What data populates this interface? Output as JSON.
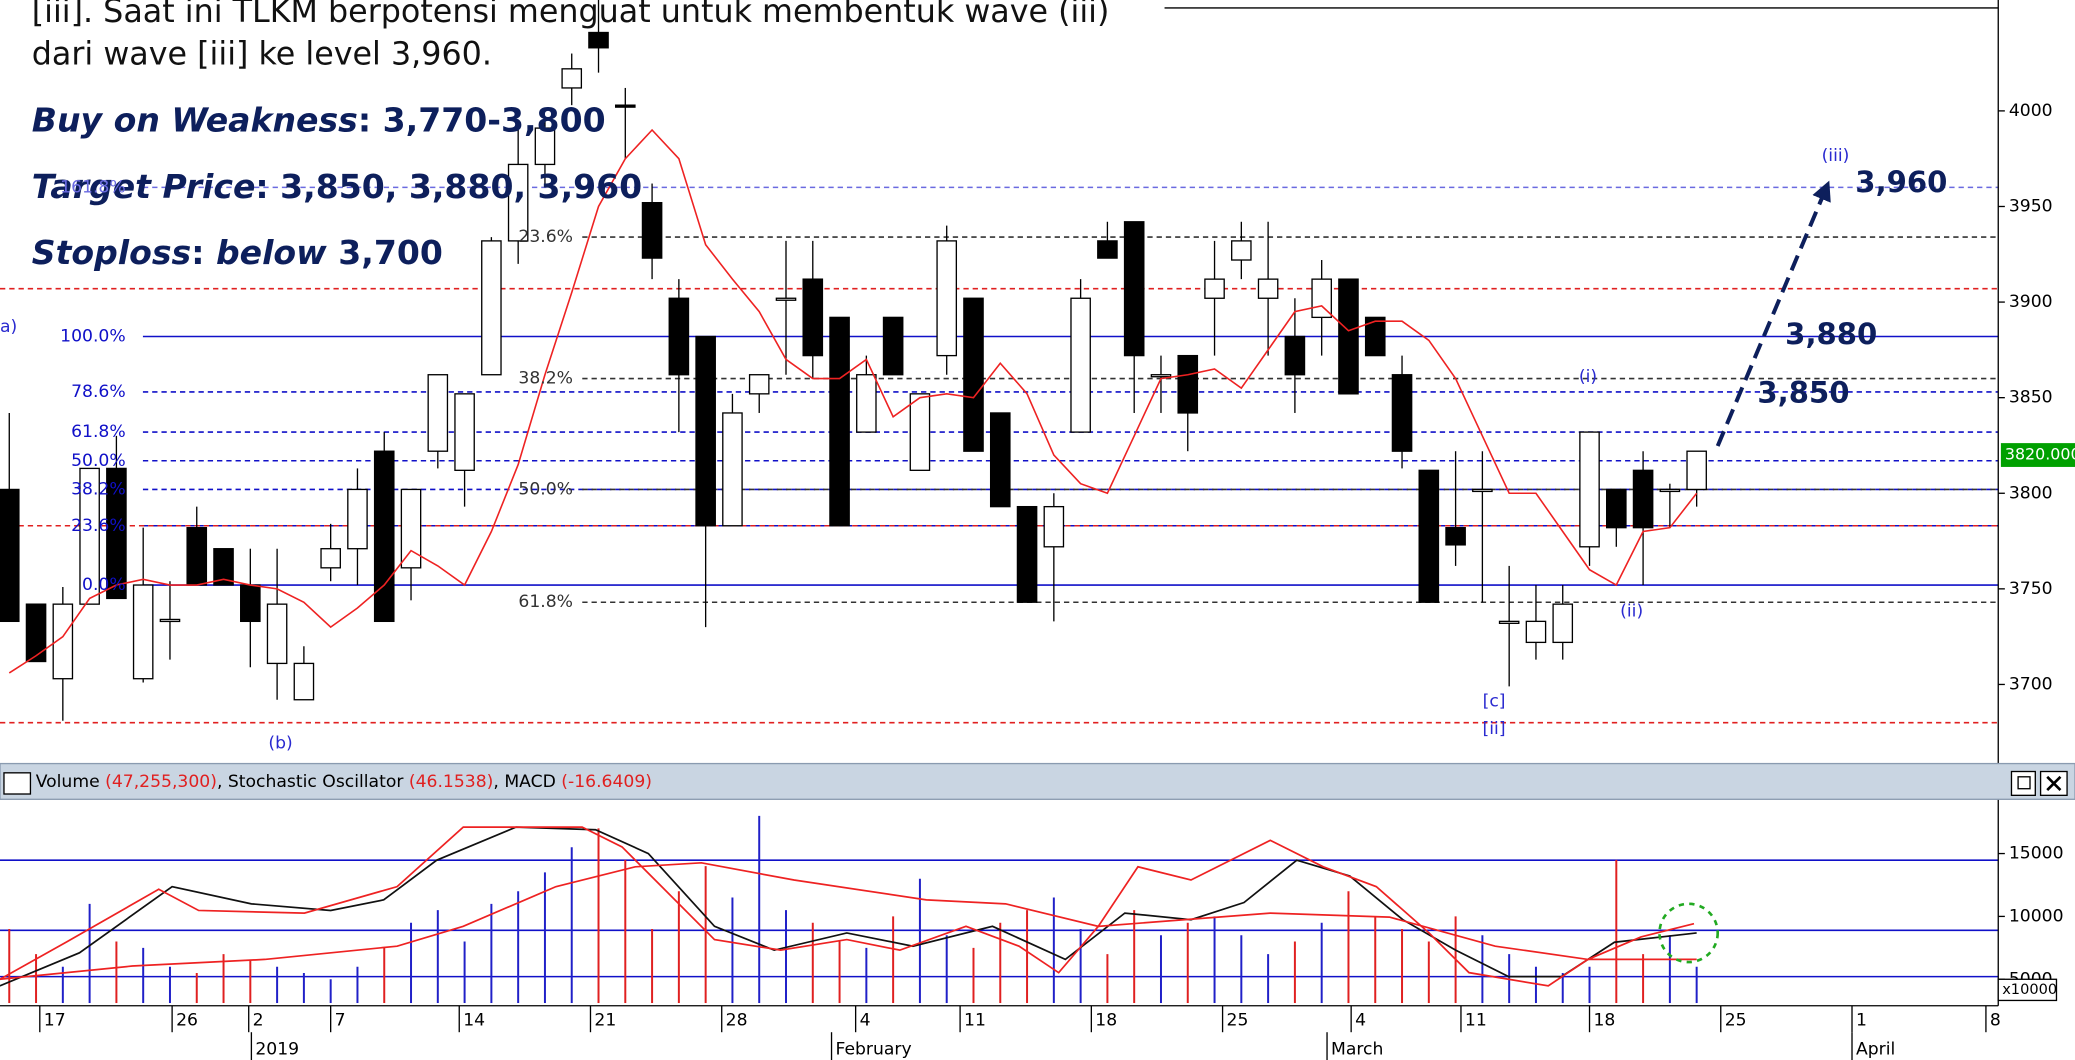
{
  "chart_data": {
    "type": "candlestick",
    "notes": [
      "[iii]. Saat ini TLKM berpotensi menguat untuk membentuk wave (iii)",
      "dari wave [iii] ke level 3,960."
    ],
    "plan": [
      [
        {
          "text": "Buy on Weakness",
          "italic": true
        },
        {
          "text": ": 3,770-3,800",
          "italic": false
        }
      ],
      [
        {
          "text": "Target Price",
          "italic": true
        },
        {
          "text": ": 3,850, 3,880, 3,960",
          "italic": false
        }
      ],
      [
        {
          "text": "Stoploss",
          "italic": true
        },
        {
          "text": ": ",
          "italic": false
        },
        {
          "text": "below",
          "italic": true
        },
        {
          "text": " 3,700",
          "italic": false
        }
      ]
    ],
    "ylim": [
      3660,
      4058
    ],
    "yticks": [
      3700,
      3750,
      3800,
      3850,
      3900,
      3950,
      4000
    ],
    "last_price": {
      "value": 3820,
      "label": "3820.000"
    },
    "xlim": [
      -0.346,
      74.26
    ],
    "xticks": [
      {
        "value": 1.14,
        "label": "17"
      },
      {
        "value": 6.08,
        "label": "26"
      },
      {
        "value": 8.94,
        "label": "2"
      },
      {
        "value": 12.0,
        "label": "7"
      },
      {
        "value": 16.8,
        "label": "14"
      },
      {
        "value": 21.7,
        "label": "21"
      },
      {
        "value": 26.6,
        "label": "28"
      },
      {
        "value": 31.6,
        "label": "4"
      },
      {
        "value": 35.5,
        "label": "11"
      },
      {
        "value": 40.4,
        "label": "18"
      },
      {
        "value": 45.3,
        "label": "25"
      },
      {
        "value": 50.1,
        "label": "4"
      },
      {
        "value": 54.2,
        "label": "11"
      },
      {
        "value": 59.0,
        "label": "18"
      },
      {
        "value": 63.9,
        "label": "25"
      },
      {
        "value": 68.8,
        "label": "1"
      },
      {
        "value": 73.8,
        "label": "8"
      }
    ],
    "months": [
      {
        "value": 9.04,
        "label": "2019"
      },
      {
        "value": 30.7,
        "label": "February"
      },
      {
        "value": 49.2,
        "label": "March"
      },
      {
        "value": 68.8,
        "label": "April"
      }
    ],
    "candles": [
      [
        3802,
        3842,
        3733,
        3733
      ],
      [
        3742,
        3742,
        3712,
        3712
      ],
      [
        3703,
        3751,
        3681,
        3742
      ],
      [
        3742,
        3813,
        3742,
        3813
      ],
      [
        3813,
        3830,
        3745,
        3745
      ],
      [
        3703,
        3782,
        3701,
        3752
      ],
      [
        3733,
        3754,
        3713,
        3734
      ],
      [
        3782,
        3793,
        3752,
        3752
      ],
      [
        3771,
        3771,
        3752,
        3752
      ],
      [
        3752,
        3771,
        3709,
        3733
      ],
      [
        3711,
        3771,
        3692,
        3742
      ],
      [
        3692,
        3720,
        3692,
        3711
      ],
      [
        3761,
        3784,
        3754,
        3771
      ],
      [
        3771,
        3813,
        3752,
        3802
      ],
      [
        3822,
        3832,
        3733,
        3733
      ],
      [
        3761,
        3802,
        3744,
        3802
      ],
      [
        3822,
        3862,
        3813,
        3862
      ],
      [
        3812,
        3852,
        3793,
        3852
      ],
      [
        3862,
        3934,
        3862,
        3932
      ],
      [
        3932,
        3990,
        3920,
        3972
      ],
      [
        3972,
        3995,
        3960,
        3991
      ],
      [
        4012,
        4030,
        4003,
        4022
      ],
      [
        4041,
        4058,
        4020,
        4033
      ],
      [
        4003,
        4012,
        3975,
        4002
      ],
      [
        3952,
        3962,
        3912,
        3923
      ],
      [
        3902,
        3912,
        3832,
        3862
      ],
      [
        3882,
        3882,
        3730,
        3783
      ],
      [
        3783,
        3852,
        3783,
        3842
      ],
      [
        3852,
        3862,
        3842,
        3862
      ],
      [
        3902,
        3932,
        3862,
        3902
      ],
      [
        3912,
        3932,
        3860,
        3872
      ],
      [
        3892,
        3892,
        3783,
        3783
      ],
      [
        3832,
        3872,
        3832,
        3862
      ],
      [
        3892,
        3892,
        3862,
        3862
      ],
      [
        3812,
        3852,
        3812,
        3852
      ],
      [
        3872,
        3940,
        3862,
        3932
      ],
      [
        3902,
        3902,
        3822,
        3822
      ],
      [
        3842,
        3842,
        3793,
        3793
      ],
      [
        3793,
        3793,
        3743,
        3743
      ],
      [
        3772,
        3800,
        3733,
        3793
      ],
      [
        3832,
        3912,
        3832,
        3902
      ],
      [
        3932,
        3942,
        3923,
        3923
      ],
      [
        3942,
        3942,
        3842,
        3872
      ],
      [
        3862,
        3872,
        3842,
        3862
      ],
      [
        3872,
        3872,
        3822,
        3842
      ],
      [
        3902,
        3932,
        3872,
        3912
      ],
      [
        3922,
        3942,
        3912,
        3932
      ],
      [
        3902,
        3942,
        3872,
        3912
      ],
      [
        3882,
        3902,
        3842,
        3862
      ],
      [
        3892,
        3922,
        3872,
        3912
      ],
      [
        3912,
        3912,
        3852,
        3852
      ],
      [
        3892,
        3892,
        3872,
        3872
      ],
      [
        3862,
        3872,
        3813,
        3822
      ],
      [
        3812,
        3812,
        3743,
        3743
      ],
      [
        3782,
        3822,
        3762,
        3773
      ],
      [
        3802,
        3822,
        3743,
        3802
      ],
      [
        3733,
        3762,
        3699,
        3733
      ],
      [
        3722,
        3752,
        3713,
        3733
      ],
      [
        3722,
        3752,
        3713,
        3742
      ],
      [
        3772,
        3832,
        3762,
        3832
      ],
      [
        3802,
        3802,
        3772,
        3782
      ],
      [
        3812,
        3822,
        3752,
        3782
      ],
      [
        3802,
        3805,
        3782,
        3802
      ],
      [
        3802,
        3822,
        3793,
        3822
      ]
    ],
    "up_color": "#ffffff",
    "down_color": "#000000",
    "ma": {
      "color": "#ee2222",
      "values": [
        3706,
        3715,
        3725,
        3745,
        3752,
        3755,
        3752,
        3752,
        3755,
        3752,
        3750,
        3743,
        3730,
        3740,
        3752,
        3770,
        3762,
        3752,
        3780,
        3815,
        3862,
        3905,
        3950,
        3975,
        3990,
        3975,
        3930,
        3912,
        3895,
        3870,
        3860,
        3860,
        3870,
        3840,
        3850,
        3852,
        3850,
        3868,
        3852,
        3820,
        3805,
        3800,
        3830,
        3860,
        3862,
        3865,
        3855,
        3875,
        3895,
        3898,
        3885,
        3890,
        3890,
        3880,
        3860,
        3830,
        3800,
        3800,
        3780,
        3760,
        3752,
        3780,
        3782,
        3800
      ]
    },
    "levels": [
      {
        "value": 3960,
        "label": "161.8%",
        "color": "#6a6ae0",
        "dash": true,
        "side": "left"
      },
      {
        "value": 3882,
        "label": "100.0%",
        "color": "#1010c8",
        "dash": false,
        "side": "left"
      },
      {
        "value": 3853,
        "label": "78.6%",
        "color": "#1010c8",
        "dash": true,
        "side": "left"
      },
      {
        "value": 3832,
        "label": "61.8%",
        "color": "#1010c8",
        "dash": true,
        "side": "left"
      },
      {
        "value": 3817,
        "label": "50.0%",
        "color": "#1010c8",
        "dash": true,
        "side": "left"
      },
      {
        "value": 3802,
        "label": "38.2%",
        "color": "#1010c8",
        "dash": true,
        "side": "left"
      },
      {
        "value": 3783,
        "label": "23.6%",
        "color": "#1010c8",
        "dash": true,
        "side": "left"
      },
      {
        "value": 3752,
        "label": "0.0%",
        "color": "#1010c8",
        "dash": false,
        "side": "left"
      },
      {
        "value": 3934,
        "label": "23.6%",
        "color": "#333333",
        "dash": true,
        "side": "right"
      },
      {
        "value": 3860,
        "label": "38.2%",
        "color": "#333333",
        "dash": true,
        "side": "right"
      },
      {
        "value": 3802,
        "label": "50.0%",
        "color": "#333333",
        "dash": true,
        "side": "right"
      },
      {
        "value": 3743,
        "label": "61.8%",
        "color": "#333333",
        "dash": true,
        "side": "right"
      },
      {
        "value": 3907,
        "color": "#e02020",
        "dash": true,
        "side": "full"
      },
      {
        "value": 3783,
        "color": "#e02020",
        "dash": true,
        "side": "full"
      },
      {
        "value": 3680,
        "color": "#e02020",
        "dash": true,
        "side": "full"
      }
    ],
    "waves": [
      "a)",
      "(b)",
      "[c]",
      "[ii]",
      "(i)",
      "(ii)",
      "(iii)"
    ],
    "targets": [
      "3,960",
      "3,880",
      "3,850"
    ],
    "legend": [
      {
        "name": "Volume",
        "reading": "(47,255,300)"
      },
      {
        "name": ", Stochastic Oscillator",
        "reading": "(46.1538)"
      },
      {
        "name": ", MACD",
        "reading": "(-16.6409)"
      }
    ],
    "y2lim": [
      3105,
      19105
    ],
    "y2ticks": [
      5000,
      10000,
      15000
    ],
    "y2_unit": "x10000",
    "y2_levels": [
      14474,
      8895,
      5211
    ],
    "volume": {
      "values": [
        9000,
        7000,
        6000,
        11000,
        8000,
        7500,
        6000,
        5500,
        7000,
        6500,
        6000,
        5500,
        5000,
        6000,
        7500,
        9500,
        10500,
        8000,
        11000,
        12000,
        13500,
        15500,
        17000,
        14500,
        9000,
        12000,
        14000,
        11500,
        18000,
        10500,
        9500,
        8000,
        7500,
        10000,
        13000,
        8500,
        7500,
        9500,
        10500,
        11500,
        9000,
        7000,
        10500,
        8500,
        9500,
        10000,
        8500,
        7000,
        8000,
        9500,
        12000,
        10000,
        9000,
        8000,
        10000,
        8500,
        7000,
        6000,
        5500,
        6000,
        14500,
        7000,
        8500,
        6000
      ],
      "up_color": "#2020c8",
      "down_color": "#e02020"
    },
    "lines": [
      {
        "color": "#111111",
        "x": [
          -0.35,
          2.62,
          6.08,
          9.04,
          12.0,
          13.98,
          15.96,
          18.92,
          21.89,
          23.86,
          26.33,
          28.56,
          31.27,
          33.74,
          36.71,
          39.43,
          41.65,
          44.12,
          46.1,
          48.07,
          50.05,
          52.03,
          54.0,
          55.98,
          57.95,
          59.93,
          63.0
        ],
        "values": [
          4474,
          7105,
          12368,
          11000,
          10474,
          11316,
          14474,
          17105,
          16895,
          15000,
          9211,
          7316,
          8684,
          7632,
          9211,
          6579,
          10263,
          9737,
          11105,
          14474,
          13211,
          9737,
          7316,
          5211,
          5211,
          7947,
          8684
        ]
      },
      {
        "color": "#ee2222",
        "x": [
          -0.35,
          2.12,
          5.58,
          7.07,
          11.02,
          14.48,
          16.95,
          19.42,
          21.39,
          22.88,
          24.36,
          26.33,
          28.8,
          31.27,
          33.25,
          35.72,
          37.7,
          39.18,
          40.66,
          42.14,
          44.12,
          47.08,
          49.06,
          51.04,
          53.01,
          54.5,
          57.46,
          58.94,
          60.92,
          62.9
        ],
        "values": [
          5000,
          7947,
          12158,
          10474,
          10263,
          12368,
          17105,
          17105,
          17105,
          15526,
          12368,
          8158,
          7316,
          8158,
          7316,
          9211,
          7632,
          5526,
          9211,
          13947,
          12895,
          16053,
          13947,
          12368,
          8684,
          5526,
          4474,
          6579,
          8368,
          9421
        ]
      },
      {
        "color": "#ee2222",
        "x": [
          -0.35,
          4.59,
          9.54,
          14.48,
          16.95,
          20.41,
          23.37,
          25.84,
          29.3,
          34.24,
          37.2,
          40.66,
          47.08,
          51.53,
          55.48,
          58.94,
          63.0
        ],
        "values": [
          5000,
          6053,
          6579,
          7632,
          9211,
          12368,
          13947,
          14263,
          12895,
          11316,
          11000,
          9211,
          10263,
          9947,
          7632,
          6579,
          6579
        ]
      }
    ]
  }
}
